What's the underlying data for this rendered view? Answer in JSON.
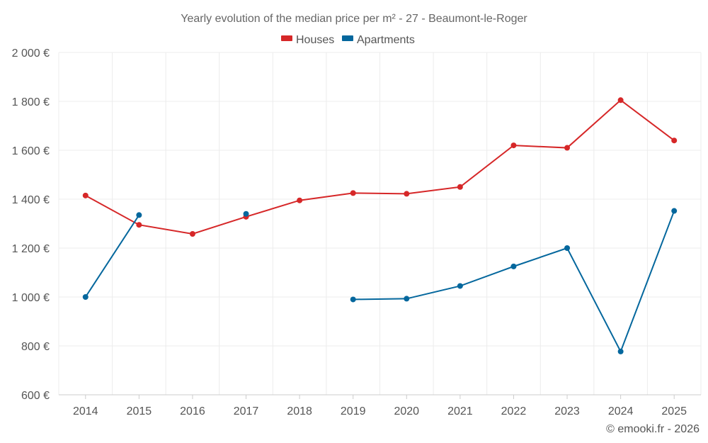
{
  "chart_data": {
    "type": "line",
    "title": "Yearly evolution of the median price per m² - 27 - Beaumont-le-Roger",
    "categories": [
      "2014",
      "2015",
      "2016",
      "2017",
      "2018",
      "2019",
      "2020",
      "2021",
      "2022",
      "2023",
      "2024",
      "2025"
    ],
    "y_tick_labels": [
      "600 €",
      "800 €",
      "1 000 €",
      "1 200 €",
      "1 400 €",
      "1 600 €",
      "1 800 €",
      "2 000 €"
    ],
    "y_ticks": [
      600,
      800,
      1000,
      1200,
      1400,
      1600,
      1800,
      2000
    ],
    "ylim": [
      600,
      2000
    ],
    "grid": true,
    "legend_position": "top-center",
    "series": [
      {
        "name": "Houses",
        "color": "#d62728",
        "values": [
          1415,
          1295,
          1258,
          1328,
          1395,
          1425,
          1422,
          1450,
          1620,
          1610,
          1805,
          1640
        ]
      },
      {
        "name": "Apartments",
        "color": "#04679d",
        "values": [
          1000,
          1335,
          null,
          1340,
          null,
          990,
          993,
          1045,
          1125,
          1200,
          777,
          1352
        ]
      }
    ],
    "credit": "© emooki.fr - 2026"
  }
}
